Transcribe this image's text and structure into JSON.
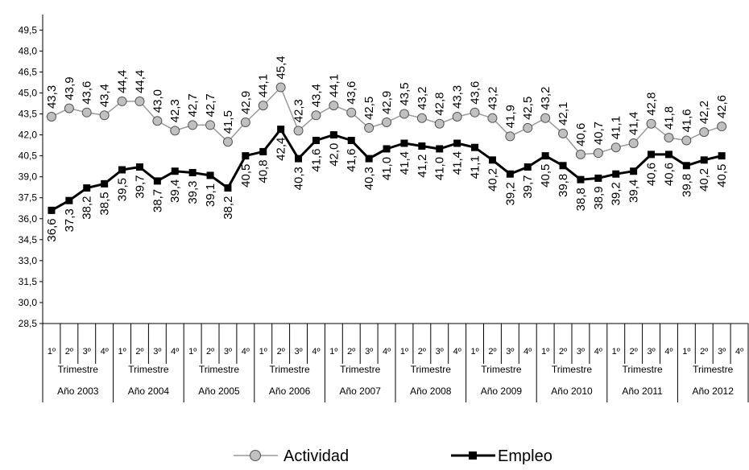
{
  "chart_data": {
    "type": "line",
    "ylim": [
      28.5,
      50.5
    ],
    "y_ticks": [
      "28,5",
      "30,0",
      "31,5",
      "33,0",
      "34,5",
      "36,0",
      "37,5",
      "39,0",
      "40,5",
      "42,0",
      "43,5",
      "45,0",
      "46,5",
      "48,0",
      "49,5"
    ],
    "grid": false,
    "legend_position": "bottom",
    "quarter_labels": [
      "1º",
      "2º",
      "3º",
      "4º"
    ],
    "quarter_group_label": "Trimestre",
    "years": [
      "Año 2003",
      "Año 2004",
      "Año 2005",
      "Año 2006",
      "Año 2007",
      "Año 2008",
      "Año 2009",
      "Año 2010",
      "Año 2011",
      "Año 2012"
    ],
    "series": [
      {
        "name": "Actividad",
        "color": "#999999",
        "marker": "circle",
        "values": [
          43.3,
          43.9,
          43.6,
          43.4,
          44.4,
          44.4,
          43.0,
          42.3,
          42.7,
          42.7,
          41.5,
          42.9,
          44.1,
          45.4,
          42.3,
          43.4,
          44.1,
          43.6,
          42.5,
          42.9,
          43.5,
          43.2,
          42.8,
          43.3,
          43.6,
          43.2,
          41.9,
          42.5,
          43.2,
          42.1,
          40.6,
          40.7,
          41.1,
          41.4,
          42.8,
          41.8,
          41.6,
          42.2,
          42.6
        ],
        "labels": [
          "43,3",
          "43,9",
          "43,6",
          "43,4",
          "44,4",
          "44,4",
          "43,0",
          "42,3",
          "42,7",
          "42,7",
          "41,5",
          "42,9",
          "44,1",
          "45,4",
          "42,3",
          "43,4",
          "44,1",
          "43,6",
          "42,5",
          "42,9",
          "43,5",
          "43,2",
          "42,8",
          "43,3",
          "43,6",
          "43,2",
          "41,9",
          "42,5",
          "43,2",
          "42,1",
          "40,6",
          "40,7",
          "41,1",
          "41,4",
          "42,8",
          "41,8",
          "41,6",
          "42,2",
          "42,6"
        ]
      },
      {
        "name": "Empleo",
        "color": "#000000",
        "marker": "square",
        "values": [
          36.6,
          37.3,
          38.2,
          38.5,
          39.5,
          39.7,
          38.7,
          39.4,
          39.3,
          39.1,
          38.2,
          40.5,
          40.8,
          42.4,
          40.3,
          41.6,
          42.0,
          41.6,
          40.3,
          41.0,
          41.4,
          41.2,
          41.0,
          41.4,
          41.1,
          40.2,
          39.2,
          39.7,
          40.5,
          39.8,
          38.8,
          38.9,
          39.2,
          39.4,
          40.6,
          40.6,
          39.8,
          40.2,
          40.5
        ],
        "labels": [
          "36,6",
          "37,3",
          "38,2",
          "38,5",
          "39,5",
          "39,7",
          "38,7",
          "39,4",
          "39,3",
          "39,1",
          "38,2",
          "40,5",
          "40,8",
          "42,4",
          "40,3",
          "41,6",
          "42,0",
          "41,6",
          "40,3",
          "41,0",
          "41,4",
          "41,2",
          "41,0",
          "41,4",
          "41,1",
          "40,2",
          "39,2",
          "39,7",
          "40,5",
          "39,8",
          "38,8",
          "38,9",
          "39,2",
          "39,4",
          "40,6",
          "40,6",
          "39,8",
          "40,2",
          "40,5"
        ]
      }
    ]
  }
}
